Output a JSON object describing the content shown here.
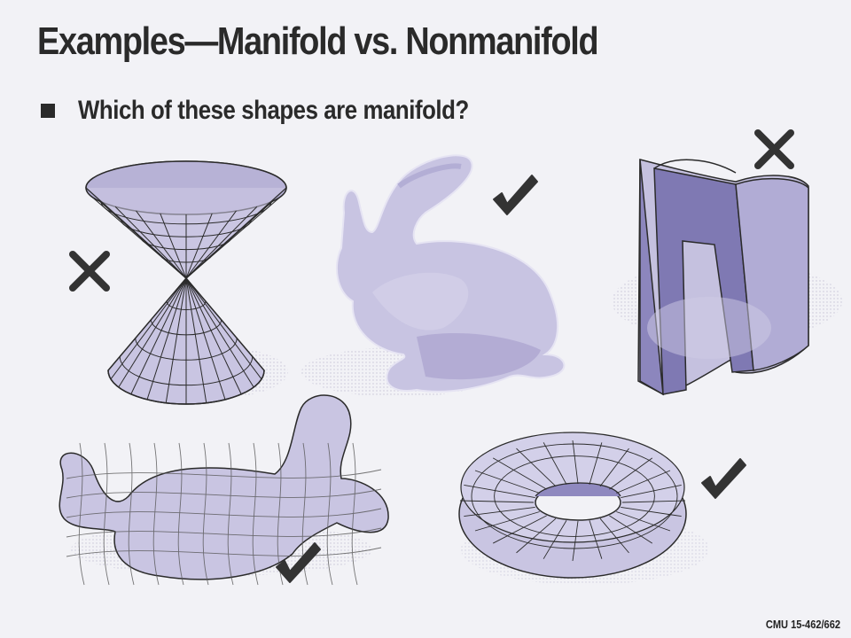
{
  "slide": {
    "title": "Examples—Manifold vs. Nonmanifold",
    "bullet": "Which of these shapes are manifold?",
    "footer": "CMU 15-462/662"
  },
  "colors": {
    "surface": "#c9c5e2",
    "surface_dark": "#9b95c4",
    "wire": "#2b2b2b",
    "mark": "#333333",
    "background": "#f2f2f6"
  },
  "shapes": [
    {
      "name": "double-cone",
      "verdict": "x-mark"
    },
    {
      "name": "bunny",
      "verdict": "check-mark"
    },
    {
      "name": "folded-sheet",
      "verdict": "x-mark"
    },
    {
      "name": "blob",
      "verdict": "check-mark"
    },
    {
      "name": "torus",
      "verdict": "check-mark"
    }
  ]
}
